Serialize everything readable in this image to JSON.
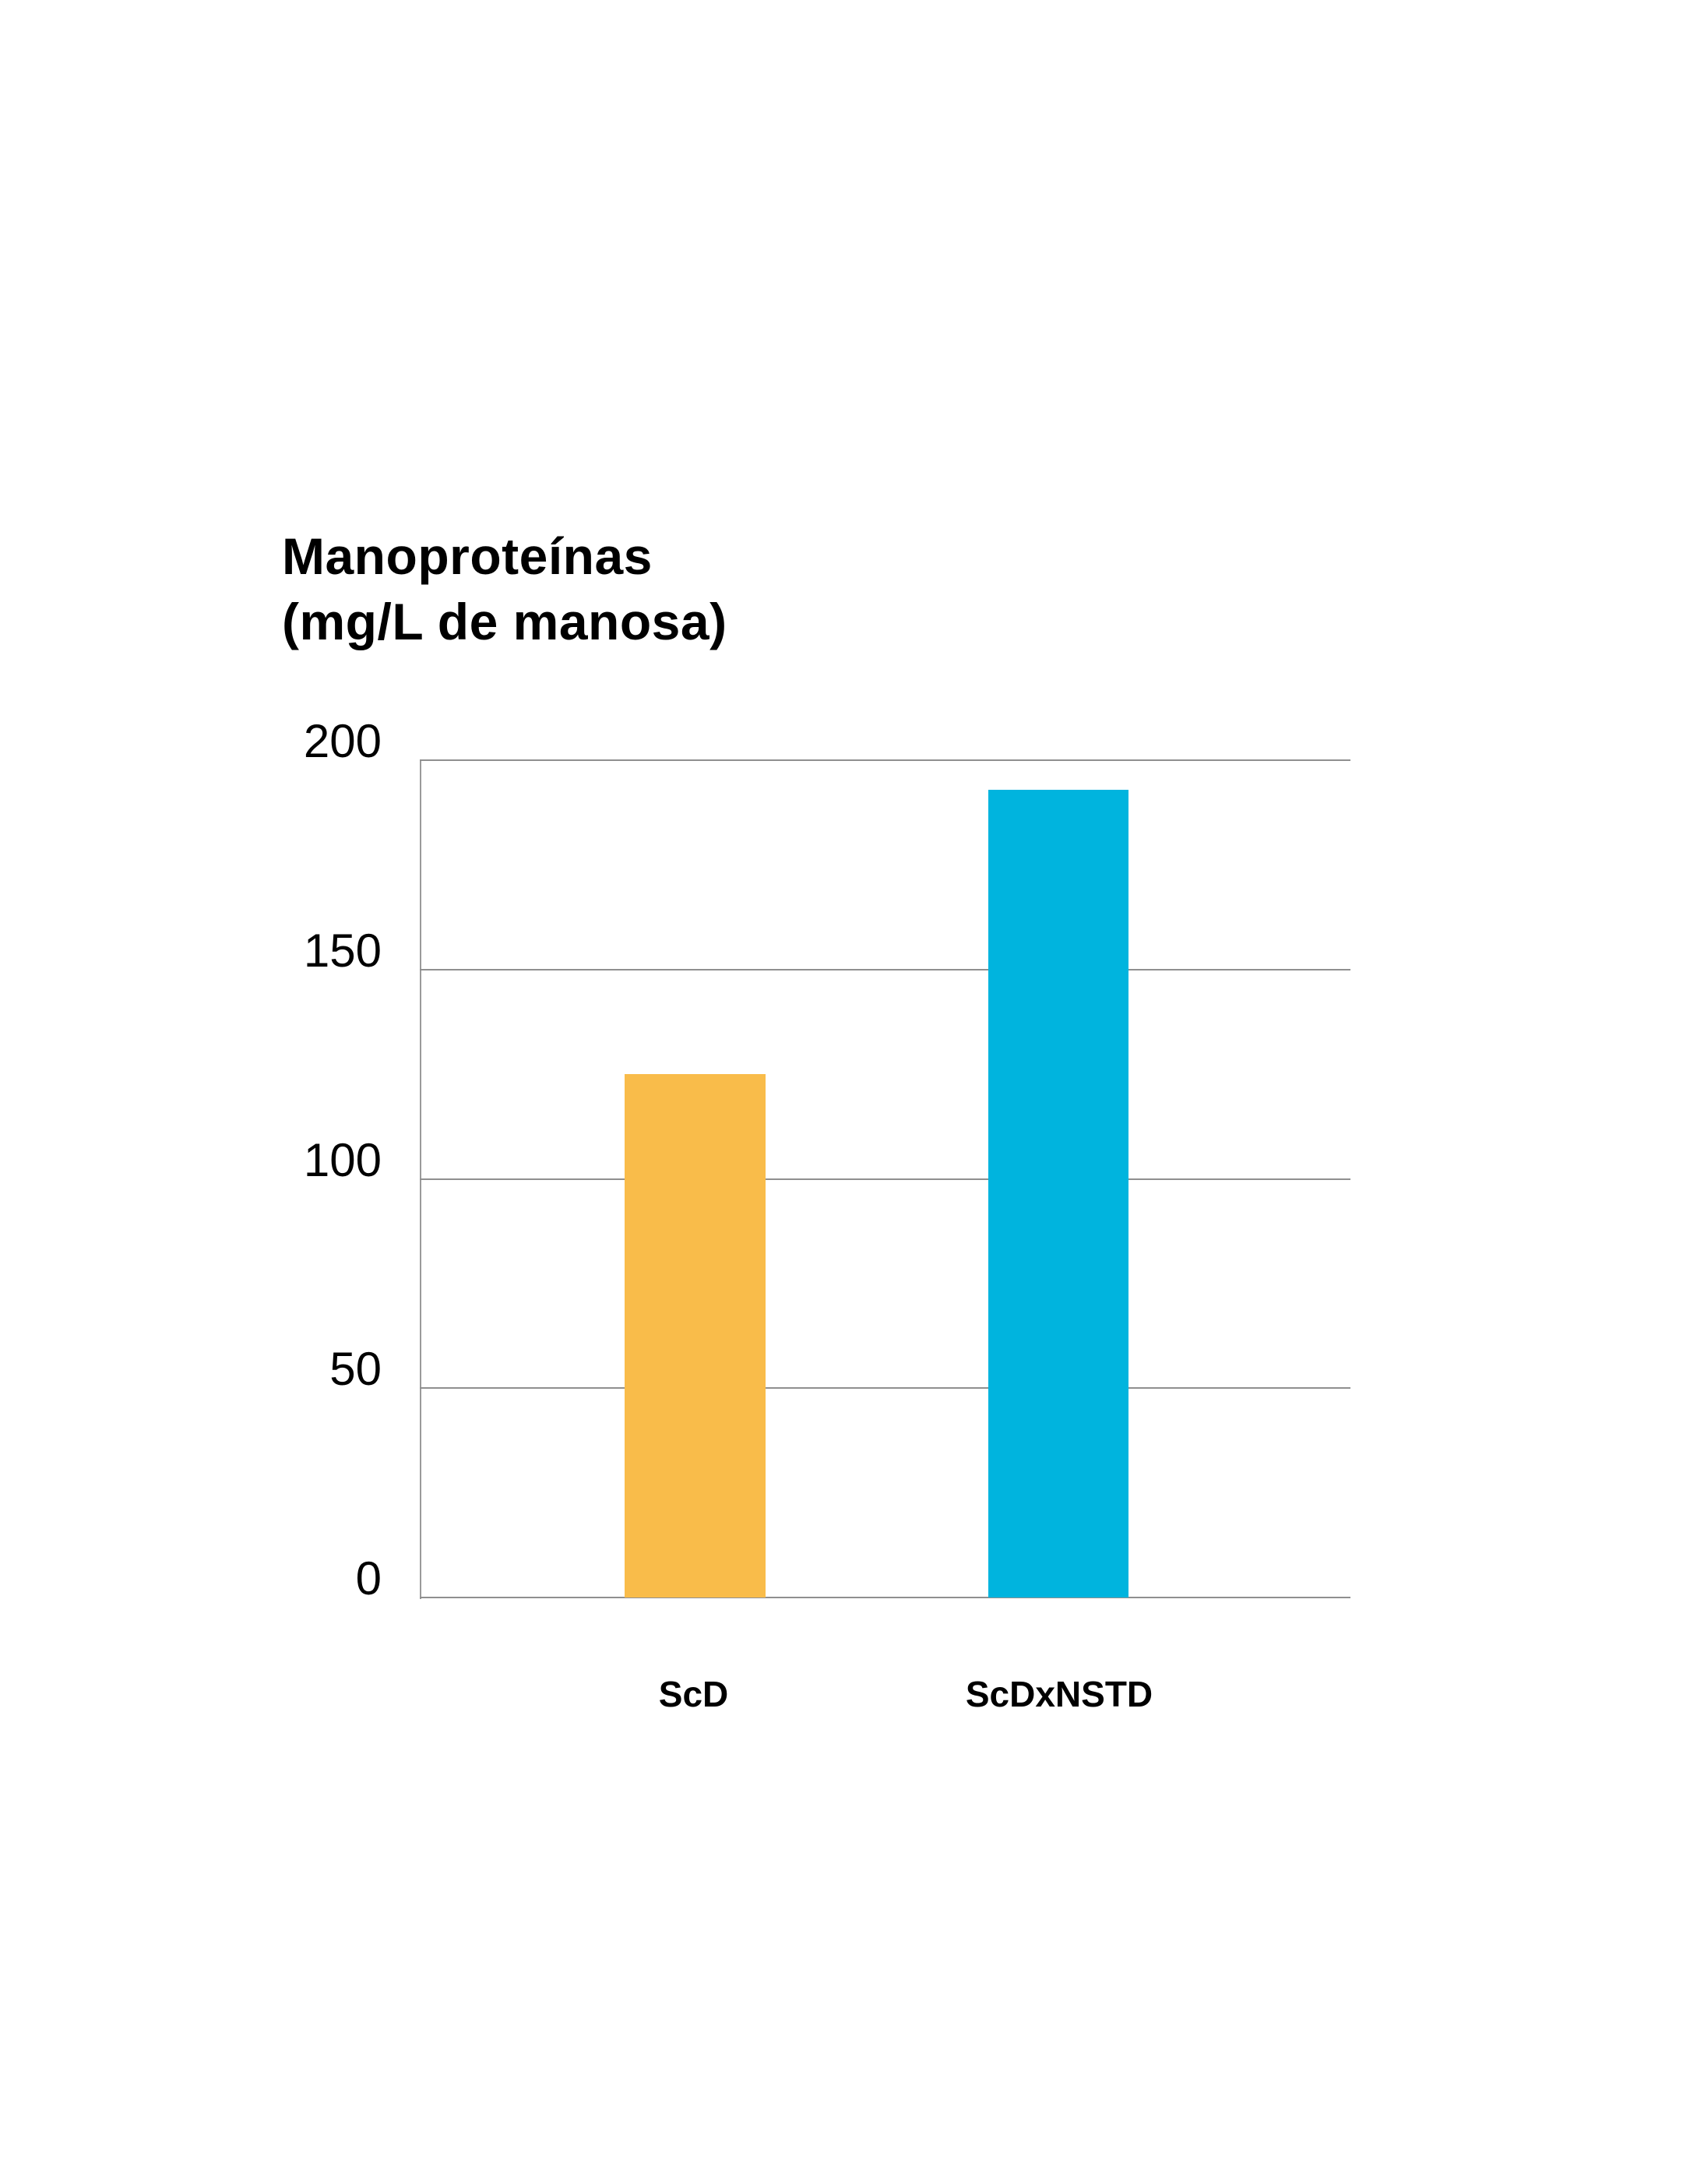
{
  "chart_data": {
    "type": "bar",
    "title": "Manoproteínas (mg/L de manosa)",
    "title_lines": [
      "Manoproteínas",
      "(mg/L de manosa)"
    ],
    "xlabel": "",
    "ylabel": "Manoproteínas (mg/L de manosa)",
    "categories": [
      "ScD",
      "ScDxNSTD"
    ],
    "values": [
      125,
      193
    ],
    "colors": [
      "#F9BC4A",
      "#00B4DE"
    ],
    "ylim": [
      0,
      200
    ],
    "yticks": [
      0,
      50,
      100,
      150,
      200
    ],
    "ytick_labels": [
      "0",
      "50",
      "100",
      "150",
      "200"
    ],
    "grid": true,
    "grid_color": "#8F8F8F",
    "legend": null
  }
}
